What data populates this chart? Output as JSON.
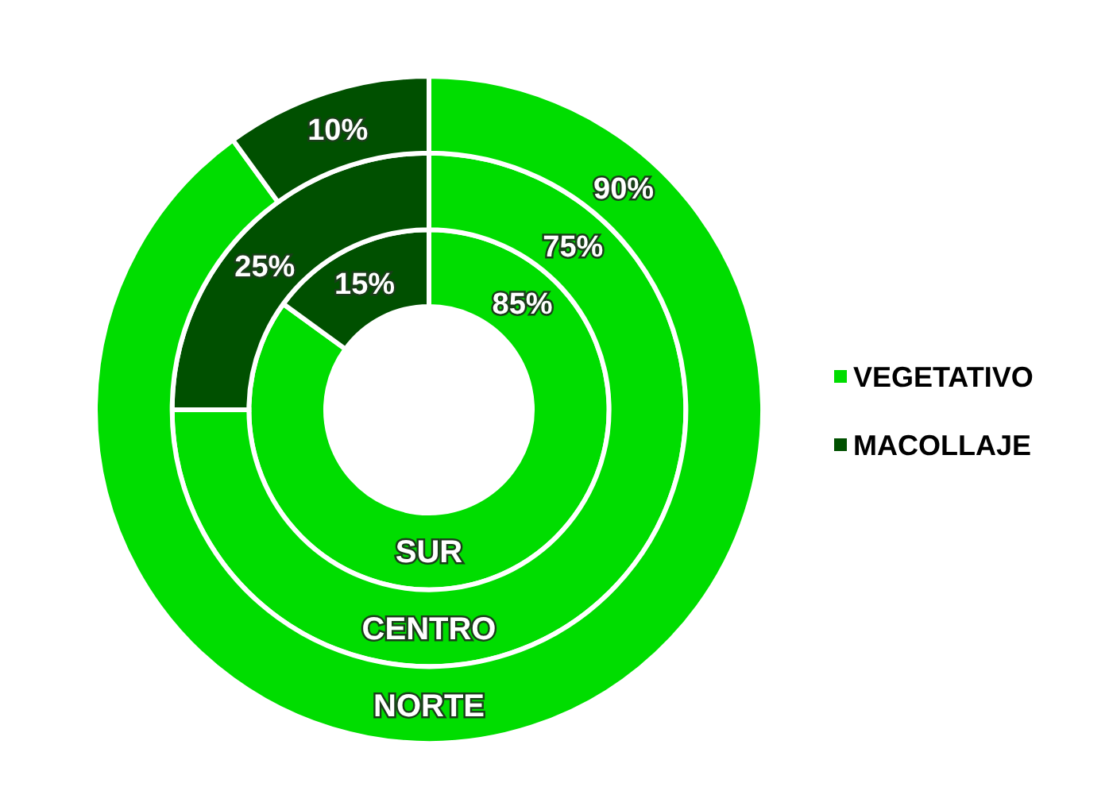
{
  "chart_data": {
    "type": "donut",
    "categories": [
      "VEGETATIVO",
      "MACOLLAJE"
    ],
    "colors": [
      "#00dd00",
      "#005000"
    ],
    "series": [
      {
        "name": "SUR",
        "values": [
          85,
          15
        ],
        "value_labels": [
          "85%",
          "15%"
        ]
      },
      {
        "name": "CENTRO",
        "values": [
          75,
          25
        ],
        "value_labels": [
          "75%",
          "25%"
        ]
      },
      {
        "name": "NORTE",
        "values": [
          90,
          10
        ],
        "value_labels": [
          "90%",
          "10%"
        ]
      }
    ],
    "legend": "right"
  }
}
